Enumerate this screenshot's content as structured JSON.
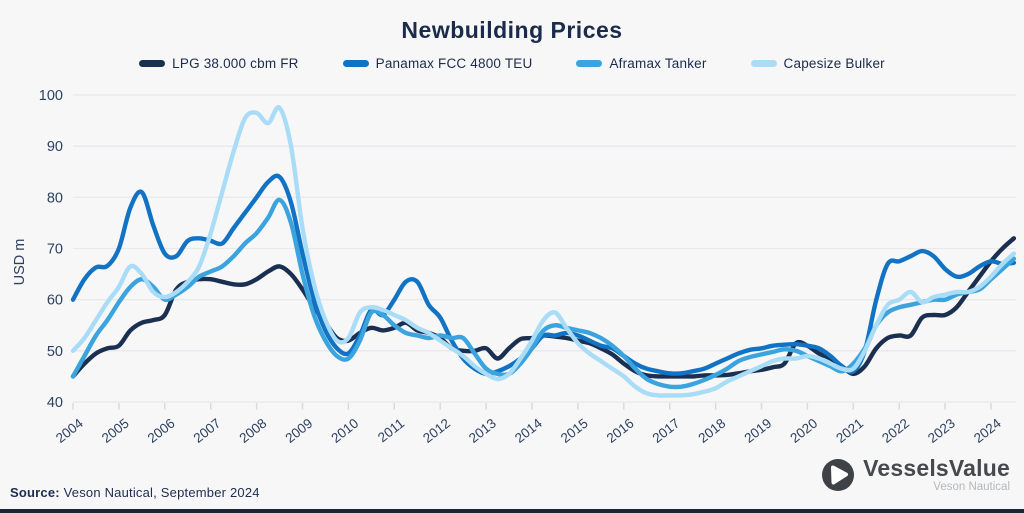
{
  "title": "Newbuilding Prices",
  "footer": {
    "source_label": "Source:",
    "source_text": "Veson Nautical, September 2024"
  },
  "logo": {
    "brand": "VesselsValue",
    "subtitle": "Veson Nautical"
  },
  "colors": {
    "background": "#f7f7f8",
    "grid": "#e9e9ec",
    "tick": "#d8d8dd",
    "title_text": "#1b2b4b",
    "axis_text": "#2e4160",
    "footer_text": "#1d2d4d",
    "bottom_bar": "#1b2534",
    "logo_icon_gray": "#3e4145",
    "logo_text_gray": "#46494d",
    "logo_subtitle_gray": "#b5b8bb"
  },
  "legend": [
    {
      "label": "LPG 38.000 cbm FR",
      "color": "#1b3050"
    },
    {
      "label": "Panamax FCC 4800 TEU",
      "color": "#1273c4"
    },
    {
      "label": "Aframax Tanker",
      "color": "#3ba3dd"
    },
    {
      "label": "Capesize Bulker",
      "color": "#a9dcf6"
    }
  ],
  "chart_data": {
    "type": "line",
    "title": "Newbuilding Prices",
    "xlabel": "",
    "ylabel": "USD m",
    "ylim": [
      40,
      100
    ],
    "yticks": [
      40,
      50,
      60,
      70,
      80,
      90,
      100
    ],
    "xticks": [
      2004,
      2005,
      2006,
      2007,
      2008,
      2009,
      2010,
      2011,
      2012,
      2013,
      2014,
      2015,
      2016,
      2017,
      2018,
      2019,
      2020,
      2021,
      2022,
      2023,
      2024
    ],
    "x_start": 2004.0,
    "x_step_years": 0.25,
    "x_end": 2024.5,
    "grid": "horizontal",
    "legend_position": "top",
    "series": [
      {
        "name": "LPG 38.000 cbm FR",
        "color": "#1b3050",
        "values": [
          45,
          47.5,
          49.5,
          50.5,
          51,
          54,
          55.5,
          56,
          57,
          62,
          63.5,
          64,
          64,
          63.5,
          63,
          63,
          64,
          65.5,
          66.5,
          65,
          62,
          58.5,
          55.5,
          52.5,
          52,
          53.5,
          54.5,
          54,
          54.5,
          55.5,
          54,
          53.5,
          52.5,
          50.5,
          50,
          50,
          50.5,
          48.5,
          50.5,
          52.3,
          52.5,
          53,
          52.8,
          52.5,
          52,
          51.5,
          50.5,
          49.3,
          47.5,
          46,
          45.2,
          45,
          45,
          45,
          45,
          45.2,
          45.2,
          45.3,
          45.6,
          46,
          46.3,
          46.8,
          47.5,
          51.5,
          51,
          49.5,
          48.5,
          47,
          45.5,
          47,
          50.5,
          52.5,
          53,
          53,
          56.5,
          57,
          57,
          58.5,
          61.5,
          64.5,
          67.5,
          70,
          72
        ]
      },
      {
        "name": "Panamax FCC 4800 TEU",
        "color": "#1273c4",
        "values": [
          60,
          64,
          66.3,
          66.6,
          70,
          78,
          81,
          74.5,
          69,
          68.5,
          71.5,
          72,
          71.5,
          71,
          74,
          77,
          80,
          83,
          84,
          79,
          69,
          60,
          54,
          50.5,
          49.5,
          53,
          58,
          57,
          60,
          63.5,
          63.5,
          59,
          56.5,
          52,
          48.5,
          46.5,
          45.5,
          46,
          47,
          48.5,
          50.5,
          53,
          53,
          53.5,
          53,
          52,
          51,
          50.5,
          49,
          47.5,
          46.5,
          46,
          45.6,
          45.6,
          46,
          46.5,
          47.5,
          48.5,
          49.5,
          50.2,
          50.5,
          51,
          51.2,
          51.3,
          51,
          50.5,
          49,
          47,
          46,
          50,
          60,
          67,
          67.5,
          68.5,
          69.5,
          68.5,
          66,
          64.5,
          65,
          66.5,
          67.5,
          67,
          67.2
        ]
      },
      {
        "name": "Aframax Tanker",
        "color": "#3ba3dd",
        "values": [
          45,
          49,
          53,
          56,
          59.5,
          62.5,
          64,
          62.5,
          60,
          61,
          62.5,
          64.5,
          65.5,
          66.5,
          68.5,
          71,
          73,
          76,
          79.5,
          75,
          65,
          57,
          52,
          49,
          48.5,
          52,
          57.5,
          57,
          55,
          53.5,
          53,
          52.5,
          53,
          52.5,
          52.5,
          49.5,
          46.5,
          45.5,
          45.5,
          47.5,
          50.5,
          54,
          55,
          54.5,
          54,
          53.5,
          52.5,
          51,
          49,
          46.5,
          44.5,
          43.5,
          43,
          43,
          43.5,
          44.3,
          45.3,
          46.5,
          48,
          48.8,
          49.3,
          49.8,
          50.3,
          50,
          49,
          48,
          47,
          46,
          47.5,
          50.5,
          55,
          57.5,
          58.5,
          59,
          59.5,
          60,
          60,
          61,
          61.5,
          62,
          64,
          66,
          68
        ]
      },
      {
        "name": "Capesize Bulker",
        "color": "#a9dcf6",
        "values": [
          50,
          52.5,
          56,
          59.5,
          62.5,
          66.5,
          65,
          61.5,
          60.5,
          61.5,
          63.5,
          66.5,
          73,
          81,
          89,
          95.5,
          96.5,
          94.5,
          97.5,
          90,
          74,
          63,
          56,
          52,
          52.5,
          57.5,
          58.5,
          58,
          57,
          56,
          54.5,
          53.5,
          52,
          50.5,
          49,
          47,
          45.5,
          44.5,
          45.5,
          48.5,
          52,
          56,
          57.5,
          54.5,
          51.5,
          49.5,
          48,
          46.5,
          45,
          43,
          41.7,
          41.3,
          41.3,
          41.3,
          41.5,
          42,
          42.7,
          44,
          45,
          46,
          47,
          48,
          48.5,
          48.5,
          49,
          48.5,
          47.5,
          46.5,
          46.5,
          50,
          55,
          59,
          60,
          61.5,
          59.5,
          60.5,
          61,
          61.5,
          61.5,
          62.5,
          64.5,
          67,
          69
        ]
      }
    ]
  }
}
